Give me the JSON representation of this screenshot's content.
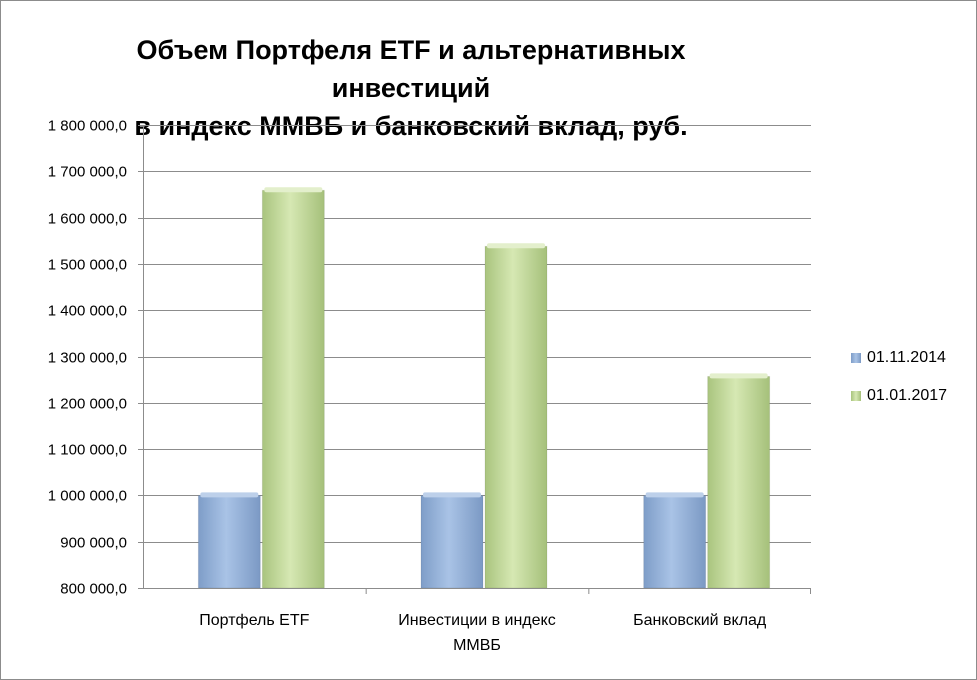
{
  "chart_data": {
    "type": "bar",
    "title": "Объем Портфеля ETF и альтернативных инвестиций в индекс ММВБ и банковский вклад, руб.",
    "title_lines": [
      "Объем Портфеля ETF и альтернативных инвестиций",
      "в индекс ММВБ и банковский вклад, руб."
    ],
    "categories": [
      [
        "Портфель ETF"
      ],
      [
        "Инвестиции в индекс",
        "ММВБ"
      ],
      [
        "Банковский вклад"
      ]
    ],
    "series": [
      {
        "name": "01.11.2014",
        "values": [
          1000000,
          1000000,
          1000000
        ],
        "color": "#95B3D7"
      },
      {
        "name": "01.01.2017",
        "values": [
          1659000,
          1538000,
          1257000
        ],
        "color": "#C3D69B"
      }
    ],
    "ylim": [
      800000,
      1800000
    ],
    "yticks": [
      800000,
      900000,
      1000000,
      1100000,
      1200000,
      1300000,
      1400000,
      1500000,
      1600000,
      1700000,
      1800000
    ],
    "ytick_labels": [
      "800 000,0",
      "900 000,0",
      "1 000 000,0",
      "1 100 000,0",
      "1 200 000,0",
      "1 300 000,0",
      "1 400 000,0",
      "1 500 000,0",
      "1 600 000,0",
      "1 700 000,0",
      "1 800 000,0"
    ],
    "grid": true,
    "legend_position": "right"
  }
}
